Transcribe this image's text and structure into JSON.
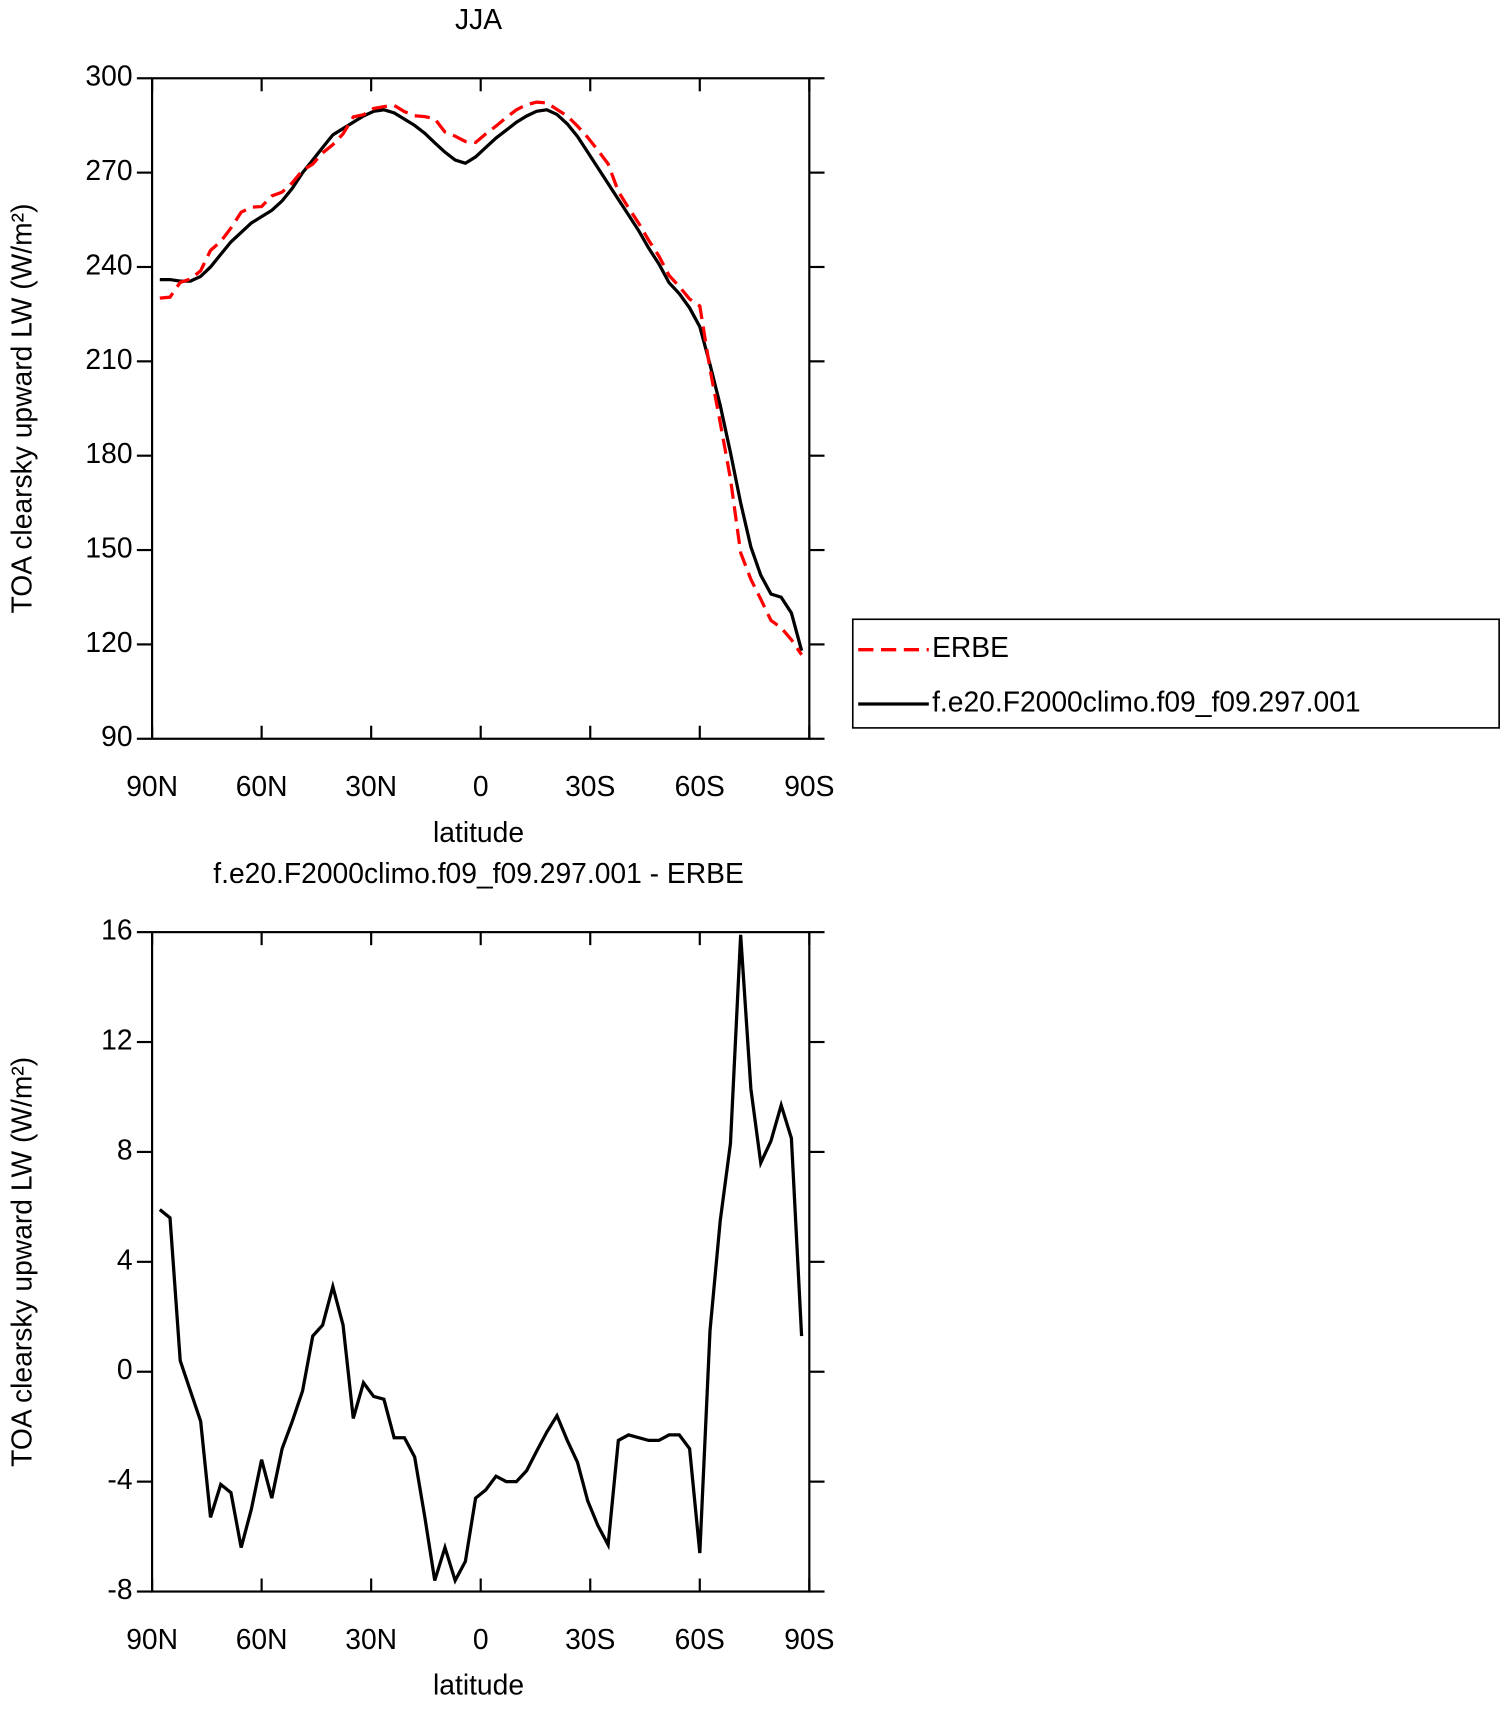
{
  "chart_data": [
    {
      "type": "line",
      "title": "JJA",
      "xlabel": "latitude",
      "ylabel": "TOA clearsky upward LW (W/m²)",
      "x": [
        87.9,
        85.1,
        82.3,
        79.5,
        76.7,
        74.0,
        71.2,
        68.4,
        65.6,
        62.8,
        60.0,
        57.2,
        54.4,
        51.6,
        48.8,
        46.0,
        43.3,
        40.5,
        37.7,
        34.9,
        32.1,
        29.3,
        26.5,
        23.7,
        20.9,
        18.1,
        15.3,
        12.6,
        9.8,
        7.0,
        4.2,
        1.4,
        -1.4,
        -4.2,
        -7.0,
        -9.8,
        -12.6,
        -15.3,
        -18.1,
        -20.9,
        -23.7,
        -26.5,
        -29.3,
        -32.1,
        -34.9,
        -37.7,
        -40.5,
        -43.3,
        -46.0,
        -48.8,
        -51.6,
        -54.4,
        -57.2,
        -60.0,
        -62.8,
        -65.6,
        -68.4,
        -71.2,
        -74.0,
        -76.7,
        -79.5,
        -82.3,
        -85.1,
        -87.9
      ],
      "series": [
        {
          "name": "ERBE",
          "color": "#ff0000",
          "dashed": true,
          "values": [
            230.1,
            230.4,
            235.1,
            236.2,
            238.8,
            245.3,
            248.1,
            252.4,
            257.4,
            259,
            259.2,
            262.6,
            263.8,
            266.8,
            270.7,
            272.7,
            276.3,
            278.9,
            282.3,
            287.7,
            288.4,
            290.4,
            291,
            291.4,
            289.4,
            288.1,
            287.8,
            287.1,
            282.9,
            281.6,
            279.9,
            279.6,
            282.3,
            284.8,
            287.5,
            290,
            291.6,
            292.4,
            292.2,
            290.1,
            288,
            284.8,
            281.2,
            277.1,
            272.8,
            264,
            258.8,
            253.9,
            248.5,
            243.5,
            237.3,
            233.8,
            229.8,
            227.6,
            207.5,
            190.5,
            172.7,
            149.1,
            140.7,
            134.4,
            127.6,
            125.3,
            121.5,
            116.7
          ]
        },
        {
          "name": "f.e20.F2000climo.f09_f09.297.001",
          "color": "#000000",
          "dashed": false,
          "values": [
            236,
            236,
            235.5,
            235.5,
            237,
            240,
            244,
            248,
            251,
            254,
            256,
            258,
            261,
            265,
            270,
            274,
            278,
            282,
            284,
            286,
            288,
            289.5,
            290,
            289,
            287,
            285,
            282.5,
            279.5,
            276.5,
            274,
            273,
            275,
            278,
            281,
            283.5,
            286,
            288,
            289.5,
            290,
            288.5,
            285.5,
            281.5,
            276.5,
            271.5,
            266.5,
            261.5,
            256.5,
            251.5,
            246,
            241,
            235,
            231.5,
            227,
            221,
            209,
            196,
            181,
            165,
            151,
            142,
            136,
            135,
            130,
            118
          ]
        }
      ],
      "xlim": [
        90,
        -90
      ],
      "xticks": [
        {
          "value": 90,
          "label": "90N"
        },
        {
          "value": 60,
          "label": "60N"
        },
        {
          "value": 30,
          "label": "30N"
        },
        0,
        {
          "value": -30,
          "label": "30S"
        },
        {
          "value": -60,
          "label": "60S"
        },
        {
          "value": -90,
          "label": "90S"
        }
      ],
      "ylim": [
        90,
        300
      ],
      "yticks": [
        90,
        120,
        150,
        180,
        210,
        240,
        270,
        300
      ],
      "legend": "right"
    },
    {
      "type": "line",
      "title": "f.e20.F2000climo.f09_f09.297.001 - ERBE",
      "xlabel": "latitude",
      "ylabel": "TOA clearsky upward LW (W/m²)",
      "x": [
        87.9,
        85.1,
        82.3,
        79.5,
        76.7,
        74.0,
        71.2,
        68.4,
        65.6,
        62.8,
        60.0,
        57.2,
        54.4,
        51.6,
        48.8,
        46.0,
        43.3,
        40.5,
        37.7,
        34.9,
        32.1,
        29.3,
        26.5,
        23.7,
        20.9,
        18.1,
        15.3,
        12.6,
        9.8,
        7.0,
        4.2,
        1.4,
        -1.4,
        -4.2,
        -7.0,
        -9.8,
        -12.6,
        -15.3,
        -18.1,
        -20.9,
        -23.7,
        -26.5,
        -29.3,
        -32.1,
        -34.9,
        -37.7,
        -40.5,
        -43.3,
        -46.0,
        -48.8,
        -51.6,
        -54.4,
        -57.2,
        -60.0,
        -62.8,
        -65.6,
        -68.4,
        -71.2,
        -74.0,
        -76.7,
        -79.5,
        -82.3,
        -85.1,
        -87.9
      ],
      "values": [
        5.9,
        5.6,
        0.4,
        -0.7,
        -1.8,
        -5.3,
        -4.1,
        -4.4,
        -6.4,
        -5.0,
        -3.2,
        -4.6,
        -2.8,
        -1.8,
        -0.7,
        1.3,
        1.7,
        3.1,
        1.7,
        -1.7,
        -0.4,
        -0.9,
        -1.0,
        -2.4,
        -2.4,
        -3.1,
        -5.3,
        -7.6,
        -6.4,
        -7.6,
        -6.9,
        -4.6,
        -4.3,
        -3.8,
        -4.0,
        -4.0,
        -3.6,
        -2.9,
        -2.2,
        -1.6,
        -2.5,
        -3.3,
        -4.7,
        -5.6,
        -6.3,
        -2.5,
        -2.3,
        -2.4,
        -2.5,
        -2.5,
        -2.3,
        -2.3,
        -2.8,
        -6.6,
        1.5,
        5.5,
        8.3,
        15.9,
        10.3,
        7.6,
        8.4,
        9.7,
        8.5,
        1.3
      ],
      "color": "#000000",
      "xlim": [
        90,
        -90
      ],
      "xticks": [
        {
          "value": 90,
          "label": "90N"
        },
        {
          "value": 60,
          "label": "60N"
        },
        {
          "value": 30,
          "label": "30N"
        },
        0,
        {
          "value": -30,
          "label": "30S"
        },
        {
          "value": -60,
          "label": "60S"
        },
        {
          "value": -90,
          "label": "90S"
        }
      ],
      "ylim": [
        -8,
        16
      ],
      "yticks": [
        -8,
        -4,
        0,
        4,
        8,
        12,
        16
      ]
    }
  ]
}
